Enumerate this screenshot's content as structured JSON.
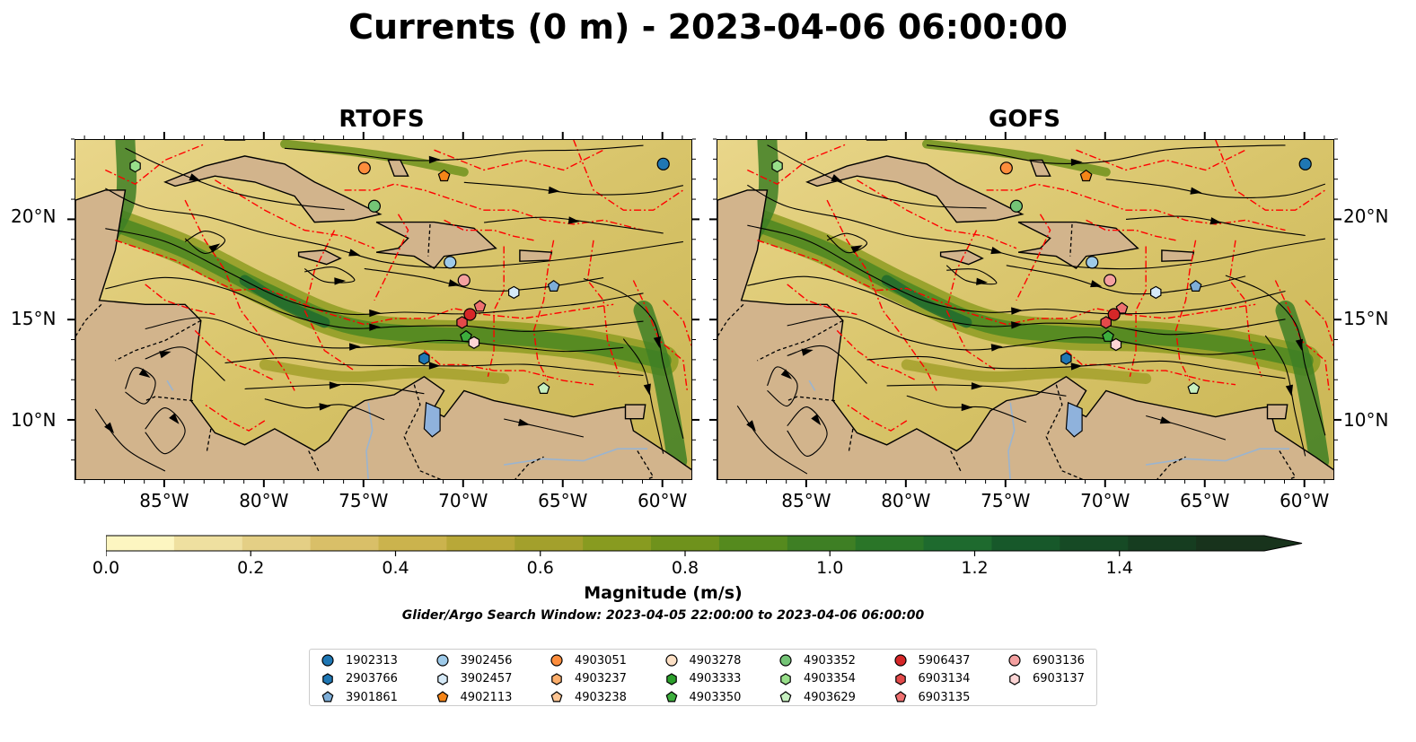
{
  "title": "Currents (0 m) - 2023-04-06 06:00:00",
  "panels": [
    {
      "name": "RTOFS"
    },
    {
      "name": "GOFS"
    }
  ],
  "axes": {
    "x_ticks": [
      "85°W",
      "80°W",
      "75°W",
      "70°W",
      "65°W",
      "60°W"
    ],
    "x_values": [
      -85,
      -80,
      -75,
      -70,
      -65,
      -60
    ],
    "y_ticks": [
      "20°N",
      "15°N",
      "10°N"
    ],
    "y_values": [
      20,
      15,
      10
    ],
    "lon_range": [
      -89.5,
      -58.5
    ],
    "lat_range": [
      7,
      24
    ]
  },
  "colorbar": {
    "label": "Magnitude (m/s)",
    "ticks": [
      "0.0",
      "0.2",
      "0.4",
      "0.6",
      "0.8",
      "1.0",
      "1.2",
      "1.4"
    ],
    "range": [
      0,
      1.6
    ],
    "colors": [
      "#fdf6c1",
      "#efe0a0",
      "#e4cf85",
      "#d9bf68",
      "#cbb34d",
      "#b8a838",
      "#a3a02c",
      "#889b20",
      "#6f921c",
      "#558a1e",
      "#3e7f24",
      "#2a7528",
      "#1e6a2e",
      "#17582a",
      "#164a25",
      "#163d20",
      "#18331c"
    ]
  },
  "search_window": "Glider/Argo Search Window: 2023-04-05 22:00:00 to 2023-04-06 06:00:00",
  "legend": [
    {
      "id": "1902313",
      "marker": "circle",
      "color": "#1f77b4"
    },
    {
      "id": "2903766",
      "marker": "hexagon",
      "color": "#1f77b4"
    },
    {
      "id": "3901861",
      "marker": "pentagon",
      "color": "#7eaed8"
    },
    {
      "id": "3902456",
      "marker": "circle",
      "color": "#9ecae9"
    },
    {
      "id": "3902457",
      "marker": "hexagon",
      "color": "#d6eaf8"
    },
    {
      "id": "4902113",
      "marker": "pentagon",
      "color": "#f58518"
    },
    {
      "id": "4903051",
      "marker": "circle",
      "color": "#fd8d3c"
    },
    {
      "id": "4903237",
      "marker": "hexagon",
      "color": "#fdae6b"
    },
    {
      "id": "4903238",
      "marker": "pentagon",
      "color": "#fdc593"
    },
    {
      "id": "4903278",
      "marker": "circle",
      "color": "#fde0c5"
    },
    {
      "id": "4903333",
      "marker": "hexagon",
      "color": "#2ca02c"
    },
    {
      "id": "4903350",
      "marker": "pentagon",
      "color": "#3dae3d"
    },
    {
      "id": "4903352",
      "marker": "circle",
      "color": "#74c476"
    },
    {
      "id": "4903354",
      "marker": "hexagon",
      "color": "#98df8a"
    },
    {
      "id": "4903629",
      "marker": "pentagon",
      "color": "#c7f0c0"
    },
    {
      "id": "5906437",
      "marker": "circle",
      "color": "#d62728"
    },
    {
      "id": "6903134",
      "marker": "hexagon",
      "color": "#e34a4a"
    },
    {
      "id": "6903135",
      "marker": "pentagon",
      "color": "#ef7070"
    },
    {
      "id": "6903136",
      "marker": "circle",
      "color": "#f4a0a0"
    },
    {
      "id": "6903137",
      "marker": "hexagon",
      "color": "#fcd5d5"
    }
  ],
  "floats": {
    "RTOFS": [
      {
        "id": "1902313",
        "lon": -60.0,
        "lat": 22.8
      },
      {
        "id": "4903051",
        "lon": -75.0,
        "lat": 22.6
      },
      {
        "id": "4902113",
        "lon": -71.0,
        "lat": 22.2
      },
      {
        "id": "4903354",
        "lon": -86.5,
        "lat": 22.7
      },
      {
        "id": "4903352",
        "lon": -74.5,
        "lat": 20.7
      },
      {
        "id": "3902456",
        "lon": -70.7,
        "lat": 17.9
      },
      {
        "id": "6903136",
        "lon": -70.0,
        "lat": 17.0
      },
      {
        "id": "3901861",
        "lon": -65.5,
        "lat": 16.7
      },
      {
        "id": "3902457",
        "lon": -67.5,
        "lat": 16.4
      },
      {
        "id": "6903135",
        "lon": -69.2,
        "lat": 15.7
      },
      {
        "id": "5906437",
        "lon": -69.7,
        "lat": 15.3
      },
      {
        "id": "6903134",
        "lon": -70.1,
        "lat": 14.9
      },
      {
        "id": "4903350",
        "lon": -69.9,
        "lat": 14.2
      },
      {
        "id": "6903137",
        "lon": -69.5,
        "lat": 13.9
      },
      {
        "id": "2903766",
        "lon": -72.0,
        "lat": 13.1
      },
      {
        "id": "4903629",
        "lon": -66.0,
        "lat": 11.6
      }
    ],
    "GOFS": [
      {
        "id": "1902313",
        "lon": -60.0,
        "lat": 22.8
      },
      {
        "id": "4903051",
        "lon": -75.0,
        "lat": 22.6
      },
      {
        "id": "4902113",
        "lon": -71.0,
        "lat": 22.2
      },
      {
        "id": "4903354",
        "lon": -86.5,
        "lat": 22.7
      },
      {
        "id": "4903352",
        "lon": -74.5,
        "lat": 20.7
      },
      {
        "id": "3902456",
        "lon": -70.7,
        "lat": 17.9
      },
      {
        "id": "6903136",
        "lon": -69.8,
        "lat": 17.0
      },
      {
        "id": "3901861",
        "lon": -65.5,
        "lat": 16.7
      },
      {
        "id": "3902457",
        "lon": -67.5,
        "lat": 16.4
      },
      {
        "id": "6903135",
        "lon": -69.2,
        "lat": 15.6
      },
      {
        "id": "5906437",
        "lon": -69.6,
        "lat": 15.3
      },
      {
        "id": "6903134",
        "lon": -70.0,
        "lat": 14.9
      },
      {
        "id": "4903350",
        "lon": -69.9,
        "lat": 14.2
      },
      {
        "id": "6903137",
        "lon": -69.5,
        "lat": 13.8
      },
      {
        "id": "2903766",
        "lon": -72.0,
        "lat": 13.1
      },
      {
        "id": "4903629",
        "lon": -65.6,
        "lat": 11.6
      }
    ]
  }
}
